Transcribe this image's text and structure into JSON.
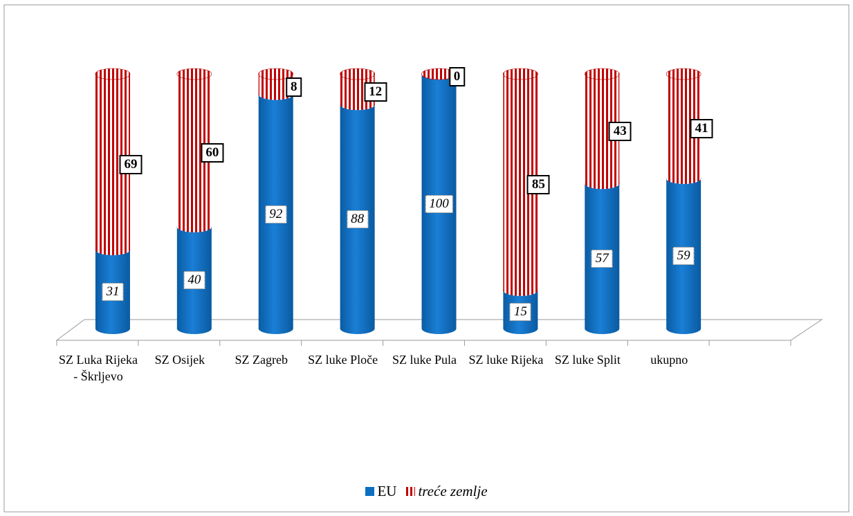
{
  "chart_data": {
    "type": "stacked_bar_3d",
    "categories": [
      "SZ Luka Rijeka - Škrljevo",
      "SZ Osijek",
      "SZ Zagreb",
      "SZ luke Ploče",
      "SZ luke Pula",
      "SZ luke Rijeka",
      "SZ luke Split",
      "ukupno"
    ],
    "series": [
      {
        "name": "EU",
        "color": "#0b6fc2",
        "values": [
          31,
          40,
          92,
          88,
          100,
          15,
          57,
          59
        ]
      },
      {
        "name": "treće zemlje",
        "color": "#c00000",
        "values": [
          69,
          60,
          8,
          12,
          0,
          85,
          43,
          41
        ]
      }
    ],
    "legend": "bottom"
  }
}
